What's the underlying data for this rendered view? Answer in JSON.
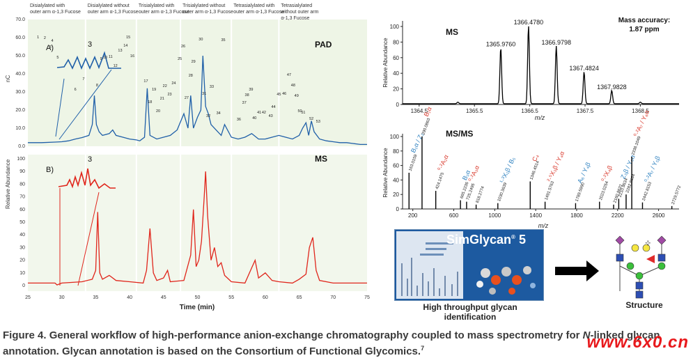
{
  "caption": {
    "figure_label": "Figure 4.",
    "text_1": "General workflow of high-performance anion-exchange chromatography coupled to mass spectrometry for ",
    "text_italic": "N",
    "text_2": "-linked glycan annotation. Glycan annotation is based on the Consortium of Functional Glycomics.",
    "superscript": "7"
  },
  "watermark": "www.6x0.cn",
  "chart_data": [
    {
      "type": "line",
      "panel": "A)",
      "trace_label": "PAD",
      "ylabel": "nC",
      "yticks": [
        "0.0",
        "10.0",
        "20.0",
        "30.0",
        "40.0",
        "50.0",
        "60.0",
        "70.0"
      ],
      "ylim": [
        0,
        70
      ],
      "xlim": [
        25,
        75
      ],
      "color": "#1f5fa8",
      "region_labels": [
        "Disialylated with outer arm α-1,3 Fucose",
        "Disialylated without outer arm α-1,3 Fucose",
        "Trisialylated with outer arm α-1,3 Fucose",
        "Trisialylated without outer arm α-1,3 Fucose",
        "Tetrasialylated with outer arm α-1,3 Fucose",
        "Tetrasialylated without outer arm α-1,3 Fucose"
      ],
      "inset_label": "3",
      "series": [
        {
          "x": [
            25,
            27,
            29,
            30,
            31,
            32,
            33,
            34,
            34.5,
            34.8,
            35.1,
            35.5,
            36,
            37,
            37.5,
            38,
            39,
            40,
            41,
            41.5,
            42.2,
            42.6,
            43,
            44,
            45,
            46,
            47,
            48,
            48.6,
            49,
            49.4,
            50,
            50.5,
            50.8,
            51.2,
            51.6,
            52,
            53,
            53.5,
            54,
            55,
            56,
            57,
            58,
            59,
            60,
            61,
            62,
            63,
            64,
            65,
            65.5,
            66,
            66.4,
            66.8,
            67.2,
            68,
            69,
            70,
            71,
            72,
            73,
            74,
            75
          ],
          "y": [
            2,
            2,
            2.3,
            2.5,
            3,
            4,
            4.8,
            6,
            12,
            28,
            12,
            8,
            6,
            7,
            9,
            6,
            5,
            4,
            3.5,
            3,
            5,
            32,
            6,
            4,
            5,
            6,
            9,
            18,
            10,
            28,
            10,
            16,
            20,
            50,
            22,
            18,
            12,
            8,
            6,
            12,
            5,
            4,
            5,
            7,
            4,
            4,
            5,
            6,
            5,
            4,
            6,
            10,
            13,
            6,
            14,
            8,
            4,
            3,
            2.5,
            2,
            2,
            1.5,
            1,
            1
          ]
        }
      ],
      "peak_labels": [
        "1",
        "2",
        "3",
        "4",
        "5",
        "6",
        "7",
        "8",
        "9",
        "10",
        "11",
        "12",
        "13",
        "14",
        "15",
        "16",
        "17",
        "18",
        "19",
        "20",
        "21",
        "22",
        "23",
        "24",
        "25",
        "26",
        "27",
        "28",
        "29",
        "30",
        "31",
        "32",
        "33",
        "34",
        "35",
        "36",
        "37",
        "38",
        "39",
        "40",
        "41",
        "42",
        "43",
        "44",
        "45",
        "46",
        "47",
        "48",
        "49",
        "50",
        "51",
        "52",
        "53"
      ]
    },
    {
      "type": "line",
      "panel": "B)",
      "trace_label": "MS",
      "ylabel": "Relative Abundance",
      "xlabel": "Time (min)",
      "yticks": [
        "0",
        "10",
        "20",
        "30",
        "40",
        "50",
        "60",
        "70",
        "80",
        "90",
        "100"
      ],
      "ylim": [
        0,
        100
      ],
      "xticks": [
        "25",
        "30",
        "35",
        "40",
        "45",
        "50",
        "55",
        "60",
        "65",
        "70",
        "75"
      ],
      "xlim": [
        25,
        75
      ],
      "color": "#e0251b",
      "inset_label": "3",
      "series": [
        {
          "x": [
            25,
            29,
            29.3,
            30,
            33,
            34.5,
            35,
            35.3,
            35.6,
            36,
            37,
            38,
            40,
            42,
            42.5,
            43,
            43.5,
            44,
            45,
            45.6,
            46,
            48,
            49,
            49.4,
            49.8,
            50.2,
            50.6,
            51,
            51.2,
            51.5,
            52,
            52.5,
            53,
            53.5,
            54,
            55,
            57,
            58,
            58.5,
            59,
            60,
            61,
            62,
            64,
            65,
            66,
            66.5,
            67,
            67.5,
            68,
            70,
            72,
            75
          ],
          "y": [
            2,
            2,
            0.5,
            2,
            3,
            5,
            12,
            58,
            10,
            5,
            8,
            4,
            3,
            2,
            12,
            45,
            10,
            4,
            6,
            12,
            3,
            4,
            24,
            60,
            15,
            20,
            35,
            70,
            90,
            55,
            20,
            30,
            15,
            18,
            8,
            3,
            2,
            14,
            20,
            6,
            10,
            4,
            3,
            2,
            5,
            9,
            30,
            38,
            12,
            4,
            2,
            2,
            2
          ]
        }
      ]
    },
    {
      "type": "line",
      "trace_label": "MS",
      "ylabel": "Relative Abundance",
      "xlabel": "m/z",
      "annotation": "Mass accuracy: 1.87 ppm",
      "yticks": [
        "0",
        "20",
        "40",
        "60",
        "80",
        "100"
      ],
      "ylim": [
        0,
        100
      ],
      "xticks": [
        "1364.5",
        "1365.5",
        "1366.5",
        "1367.5",
        "1368.5"
      ],
      "xlim": [
        1364.2,
        1369.2
      ],
      "peaks": [
        {
          "mz": 1365.976,
          "label": "1365.9760",
          "rel": 72
        },
        {
          "mz": 1366.478,
          "label": "1366.4780",
          "rel": 100
        },
        {
          "mz": 1366.9798,
          "label": "1366.9798",
          "rel": 74
        },
        {
          "mz": 1367.4824,
          "label": "1367.4824",
          "rel": 41
        },
        {
          "mz": 1367.9828,
          "label": "1367.9828",
          "rel": 17
        },
        {
          "mz": 1365.2,
          "label": "",
          "rel": 2
        },
        {
          "mz": 1368.5,
          "label": "",
          "rel": 2
        }
      ]
    },
    {
      "type": "bar",
      "trace_label": "MS/MS",
      "ylabel": "Relative Abundance",
      "xlabel": "m/z",
      "yticks": [
        "0",
        "20",
        "40",
        "60",
        "80",
        "100"
      ],
      "ylim": [
        0,
        100
      ],
      "xticks": [
        "200",
        "600",
        "1000",
        "1400",
        "1800",
        "2200",
        "2600"
      ],
      "xlim": [
        100,
        2800
      ],
      "peaks": [
        {
          "mz": 163.0159,
          "rel": 50,
          "mass": "163.0159",
          "ion": "B₁α / Z₂"
        },
        {
          "mz": 290.0863,
          "rel": 100,
          "mass": "290.0863",
          "ion": "B₁α"
        },
        {
          "mz": 424.1475,
          "rel": 25,
          "mass": "424.1475",
          "ion": "⁰·²A₂α"
        },
        {
          "mz": 665.2236,
          "rel": 12,
          "mass": "665.2236",
          "ion": "B₃α"
        },
        {
          "mz": 725.2495,
          "rel": 10,
          "mass": "725.2495",
          "ion": "⁰·²A₃α"
        },
        {
          "mz": 818.2774,
          "rel": 6,
          "mass": "818.2774",
          "ion": ""
        },
        {
          "mz": 1030.3639,
          "rel": 8,
          "mass": "1030.3639",
          "ion": "¹·³X₁β / B₅"
        },
        {
          "mz": 1346.4514,
          "rel": 38,
          "mass": "1346.4514",
          "ion": "C₄"
        },
        {
          "mz": 1491.5763,
          "rel": 10,
          "mass": "1491.5763",
          "ion": "²·⁵X₃β / Y₄α"
        },
        {
          "mz": 1789.599,
          "rel": 8,
          "mass": "1789.5990",
          "ion": "A₆ / Y₄β"
        },
        {
          "mz": 2023.0254,
          "rel": 10,
          "mass": "2023.0254",
          "ion": "⁰·²X₄β"
        },
        {
          "mz": 2160.8631,
          "rel": 6,
          "mass": "2160.8631",
          "ion": ""
        },
        {
          "mz": 2210.9634,
          "rel": 14,
          "mass": "2210.9634",
          "ion": "Z₃β / Y₅α"
        },
        {
          "mz": 2282.8634,
          "rel": 20,
          "mass": "2282.8634",
          "ion": ""
        },
        {
          "mz": 2338.1049,
          "rel": 72,
          "mass": "2338.1049",
          "ion": "⁰·²A₇ / Y₆α"
        },
        {
          "mz": 2442.8153,
          "rel": 9,
          "mass": "2442.8153",
          "ion": "⁰·²A₇ / Y₅β"
        },
        {
          "mz": 2729.5772,
          "rel": 4,
          "mass": "2729.5772",
          "ion": ""
        }
      ]
    }
  ],
  "simglycan": {
    "name": "SimGlycan",
    "registered": "®",
    "version": "5"
  },
  "workflow_labels": {
    "high_throughput": "High throughput glycan identification",
    "structure": "Structure"
  }
}
